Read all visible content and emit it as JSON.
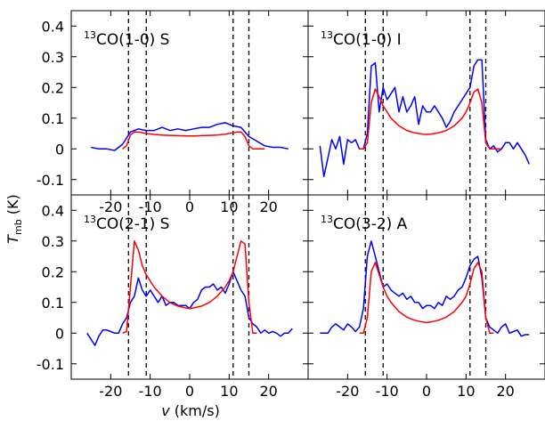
{
  "figure": {
    "xlabel": "v (km/s)",
    "ylabel": "T_mb (K)"
  },
  "chart_data": [
    {
      "type": "line",
      "title": "13CO(1-0) S",
      "title_prefix": "13",
      "title_main": "CO(1-0) S",
      "xlim": [
        -30,
        30
      ],
      "ylim": [
        -0.15,
        0.45
      ],
      "xticks": [
        "-20",
        "-10",
        "0",
        "10",
        "20"
      ],
      "yticks": [
        "-0.1",
        "0",
        "0.1",
        "0.2",
        "0.3",
        "0.4"
      ],
      "vlines": [
        -15.5,
        -11,
        11,
        15
      ],
      "series": [
        {
          "color": "#0000ff",
          "x": [
            -25,
            -23,
            -21,
            -19,
            -17,
            -15,
            -13,
            -11,
            -9,
            -7,
            -5,
            -3,
            -1,
            1,
            3,
            5,
            7,
            9,
            11,
            13,
            15,
            17,
            19,
            21,
            23,
            25
          ],
          "y": [
            0.005,
            0.0,
            0.0,
            -0.005,
            0.015,
            0.055,
            0.065,
            0.06,
            0.06,
            0.07,
            0.06,
            0.065,
            0.06,
            0.065,
            0.07,
            0.07,
            0.08,
            0.085,
            0.075,
            0.07,
            0.04,
            0.025,
            0.01,
            0.005,
            0.005,
            0.0
          ]
        },
        {
          "color": "#ff0000",
          "x": [
            -17,
            -16,
            -15,
            -14,
            -13,
            -11,
            -9,
            -7,
            -5,
            -3,
            -1,
            0,
            1,
            3,
            5,
            7,
            9,
            11,
            12,
            13,
            14,
            15,
            16,
            17,
            19
          ],
          "y": [
            0.0,
            0.01,
            0.045,
            0.055,
            0.055,
            0.05,
            0.047,
            0.045,
            0.044,
            0.043,
            0.042,
            0.042,
            0.042,
            0.043,
            0.044,
            0.045,
            0.048,
            0.052,
            0.055,
            0.055,
            0.04,
            0.01,
            0.0,
            0.0,
            0.0
          ]
        }
      ]
    },
    {
      "type": "line",
      "title": "13CO(1-0) I",
      "title_prefix": "13",
      "title_main": "CO(1-0) I",
      "xlim": [
        -30,
        30
      ],
      "ylim": [
        -0.15,
        0.45
      ],
      "xticks": [],
      "yticks": [],
      "vlines": [
        -15.5,
        -11,
        11,
        15
      ],
      "series": [
        {
          "color": "#0000ff",
          "x": [
            -27,
            -26,
            -25,
            -24,
            -23,
            -22,
            -21,
            -20,
            -19,
            -18,
            -17,
            -16,
            -15,
            -14,
            -13,
            -12,
            -11,
            -10,
            -9,
            -8,
            -7,
            -6,
            -5,
            -4,
            -3,
            -2,
            -1,
            0,
            1,
            2,
            3,
            4,
            5,
            6,
            7,
            8,
            9,
            10,
            11,
            12,
            13,
            14,
            15,
            16,
            17,
            18,
            19,
            20,
            21,
            22,
            23,
            24,
            25,
            26
          ],
          "y": [
            0.01,
            -0.09,
            -0.03,
            0.03,
            0.0,
            0.04,
            -0.05,
            0.03,
            0.02,
            0.03,
            0.0,
            0.0,
            0.05,
            0.27,
            0.28,
            0.12,
            0.2,
            0.16,
            0.18,
            0.2,
            0.12,
            0.17,
            0.12,
            0.14,
            0.17,
            0.08,
            0.14,
            0.12,
            0.12,
            0.14,
            0.12,
            0.1,
            0.07,
            0.09,
            0.12,
            0.14,
            0.16,
            0.18,
            0.2,
            0.27,
            0.29,
            0.29,
            0.03,
            0.0,
            0.01,
            -0.01,
            0.0,
            0.02,
            0.02,
            0.0,
            0.02,
            0.0,
            -0.02,
            -0.05
          ]
        },
        {
          "color": "#ff0000",
          "x": [
            -17,
            -16,
            -15,
            -14,
            -13,
            -12,
            -11,
            -10,
            -9,
            -7,
            -5,
            -3,
            -1,
            0,
            1,
            3,
            5,
            7,
            9,
            10,
            11,
            12,
            13,
            14,
            15,
            16,
            17,
            19
          ],
          "y": [
            0.0,
            0.0,
            0.02,
            0.15,
            0.195,
            0.17,
            0.14,
            0.12,
            0.1,
            0.075,
            0.06,
            0.052,
            0.048,
            0.047,
            0.048,
            0.052,
            0.06,
            0.075,
            0.1,
            0.12,
            0.15,
            0.185,
            0.195,
            0.15,
            0.02,
            0.0,
            0.0,
            0.0
          ]
        }
      ]
    },
    {
      "type": "line",
      "title": "13CO(2-1) S",
      "title_prefix": "13",
      "title_main": "CO(2-1) S",
      "xlim": [
        -30,
        30
      ],
      "ylim": [
        -0.15,
        0.45
      ],
      "xticks": [
        "-20",
        "-10",
        "0",
        "10",
        "20"
      ],
      "yticks": [
        "-0.1",
        "0",
        "0.1",
        "0.2",
        "0.3",
        "0.4"
      ],
      "vlines": [
        -15.5,
        -11,
        11,
        15
      ],
      "series": [
        {
          "color": "#0000ff",
          "x": [
            -26,
            -25,
            -24,
            -23,
            -22,
            -21,
            -20,
            -19,
            -18,
            -17,
            -16,
            -15,
            -14,
            -13,
            -12,
            -11,
            -10,
            -9,
            -8,
            -7,
            -6,
            -5,
            -4,
            -3,
            -2,
            -1,
            0,
            1,
            2,
            3,
            4,
            5,
            6,
            7,
            8,
            9,
            10,
            11,
            12,
            13,
            14,
            15,
            16,
            17,
            18,
            19,
            20,
            21,
            22,
            23,
            24,
            25,
            26
          ],
          "y": [
            0.0,
            -0.02,
            -0.04,
            -0.01,
            0.01,
            0.01,
            0.005,
            0.0,
            0.0,
            0.03,
            0.05,
            0.1,
            0.12,
            0.18,
            0.14,
            0.12,
            0.14,
            0.12,
            0.1,
            0.12,
            0.09,
            0.1,
            0.1,
            0.09,
            0.09,
            0.09,
            0.08,
            0.1,
            0.11,
            0.14,
            0.15,
            0.15,
            0.16,
            0.14,
            0.15,
            0.13,
            0.16,
            0.2,
            0.17,
            0.14,
            0.12,
            0.05,
            0.03,
            0.02,
            0.0,
            0.01,
            0.0,
            0.005,
            0.0,
            -0.01,
            0.0,
            0.0,
            0.015
          ]
        },
        {
          "color": "#ff0000",
          "x": [
            -17,
            -16,
            -15,
            -14,
            -13,
            -12,
            -11,
            -10,
            -9,
            -7,
            -5,
            -3,
            -1,
            0,
            1,
            3,
            5,
            7,
            9,
            10,
            11,
            12,
            13,
            14,
            15,
            16,
            17
          ],
          "y": [
            0.0,
            0.005,
            0.15,
            0.3,
            0.27,
            0.22,
            0.19,
            0.17,
            0.15,
            0.12,
            0.1,
            0.088,
            0.082,
            0.08,
            0.082,
            0.088,
            0.1,
            0.12,
            0.15,
            0.17,
            0.2,
            0.25,
            0.3,
            0.29,
            0.1,
            0.0,
            0.0
          ]
        }
      ]
    },
    {
      "type": "line",
      "title": "13CO(3-2) A",
      "title_prefix": "13",
      "title_main": "CO(3-2) A",
      "xlim": [
        -30,
        30
      ],
      "ylim": [
        -0.15,
        0.45
      ],
      "xticks": [
        "-20",
        "-10",
        "0",
        "10",
        "20"
      ],
      "yticks": [],
      "vlines": [
        -15.5,
        -11,
        11,
        15
      ],
      "series": [
        {
          "color": "#0000ff",
          "x": [
            -27,
            -26,
            -25,
            -24,
            -23,
            -22,
            -21,
            -20,
            -19,
            -18,
            -17,
            -16,
            -15,
            -14,
            -13,
            -12,
            -11,
            -10,
            -9,
            -8,
            -7,
            -6,
            -5,
            -4,
            -3,
            -2,
            -1,
            0,
            1,
            2,
            3,
            4,
            5,
            6,
            7,
            8,
            9,
            10,
            11,
            12,
            13,
            14,
            15,
            16,
            17,
            18,
            19,
            20,
            21,
            22,
            23,
            24,
            25,
            26
          ],
          "y": [
            0.0,
            0.0,
            0.0,
            0.02,
            0.03,
            0.02,
            0.01,
            0.03,
            0.02,
            0.005,
            0.02,
            0.08,
            0.25,
            0.3,
            0.25,
            0.2,
            0.15,
            0.16,
            0.14,
            0.13,
            0.12,
            0.13,
            0.11,
            0.12,
            0.1,
            0.1,
            0.08,
            0.09,
            0.09,
            0.08,
            0.1,
            0.09,
            0.12,
            0.11,
            0.12,
            0.14,
            0.15,
            0.18,
            0.22,
            0.24,
            0.25,
            0.18,
            0.05,
            0.02,
            0.01,
            0.0,
            0.02,
            0.03,
            0.0,
            0.005,
            0.01,
            -0.01,
            -0.005,
            -0.005
          ]
        },
        {
          "color": "#ff0000",
          "x": [
            -17,
            -16,
            -15,
            -14,
            -13,
            -12,
            -11,
            -10,
            -9,
            -7,
            -5,
            -3,
            -1,
            0,
            1,
            3,
            5,
            7,
            9,
            10,
            11,
            12,
            13,
            14,
            15,
            16,
            17
          ],
          "y": [
            0.0,
            0.0,
            0.05,
            0.2,
            0.23,
            0.19,
            0.15,
            0.12,
            0.1,
            0.07,
            0.052,
            0.042,
            0.036,
            0.035,
            0.036,
            0.042,
            0.052,
            0.07,
            0.1,
            0.12,
            0.16,
            0.21,
            0.23,
            0.2,
            0.05,
            0.0,
            0.0
          ]
        }
      ]
    }
  ]
}
